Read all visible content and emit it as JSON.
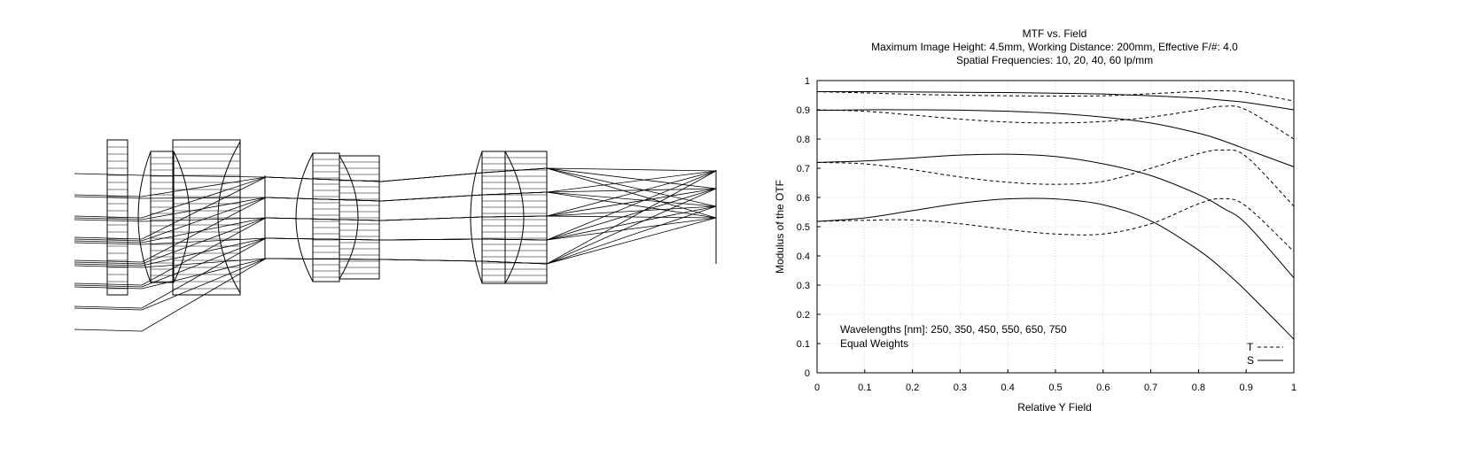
{
  "lens_layout": {
    "ray_color": "#000000",
    "element_color": "#000000",
    "background": "#ffffff"
  },
  "chart_data": {
    "type": "line",
    "title": "MTF vs. Field",
    "subtitle_1": "Maximum Image Height: 4.5mm, Working Distance: 200mm, Effective F/#: 4.0",
    "subtitle_2": "Spatial Frequencies: 10, 20, 40, 60 lp/mm",
    "xlabel": "Relative Y Field",
    "ylabel": "Modulus of the OTF",
    "xlim": [
      0,
      1
    ],
    "ylim": [
      0,
      1
    ],
    "x_ticks": [
      "0",
      "0.1",
      "0.2",
      "0.3",
      "0.4",
      "0.5",
      "0.6",
      "0.7",
      "0.8",
      "0.9",
      "1"
    ],
    "y_ticks": [
      "0",
      "0.1",
      "0.2",
      "0.3",
      "0.4",
      "0.5",
      "0.6",
      "0.7",
      "0.8",
      "0.9",
      "1"
    ],
    "grid": true,
    "annotation_1": "Wavelengths [nm]: 250, 350, 450, 550, 650, 750",
    "annotation_2": "Equal Weights",
    "legend": {
      "position": "bottom-right",
      "entries": [
        {
          "label": "T",
          "style": "dashed"
        },
        {
          "label": "S",
          "style": "solid"
        }
      ]
    },
    "x": [
      0,
      0.1,
      0.2,
      0.3,
      0.4,
      0.5,
      0.6,
      0.7,
      0.8,
      0.85,
      0.9,
      1.0
    ],
    "series": [
      {
        "group": "T",
        "frequency": 10,
        "style": "dashed",
        "values": [
          0.962,
          0.958,
          0.953,
          0.95,
          0.948,
          0.947,
          0.948,
          0.955,
          0.963,
          0.965,
          0.96,
          0.93
        ]
      },
      {
        "group": "S",
        "frequency": 10,
        "style": "solid",
        "values": [
          0.962,
          0.962,
          0.961,
          0.96,
          0.959,
          0.957,
          0.954,
          0.948,
          0.94,
          0.933,
          0.925,
          0.9
        ]
      },
      {
        "group": "T",
        "frequency": 20,
        "style": "dashed",
        "values": [
          0.9,
          0.895,
          0.882,
          0.868,
          0.858,
          0.855,
          0.86,
          0.875,
          0.9,
          0.912,
          0.9,
          0.8
        ]
      },
      {
        "group": "S",
        "frequency": 20,
        "style": "solid",
        "values": [
          0.898,
          0.9,
          0.9,
          0.899,
          0.895,
          0.888,
          0.875,
          0.855,
          0.82,
          0.795,
          0.765,
          0.705
        ]
      },
      {
        "group": "T",
        "frequency": 40,
        "style": "dashed",
        "values": [
          0.72,
          0.715,
          0.695,
          0.67,
          0.652,
          0.645,
          0.655,
          0.7,
          0.75,
          0.762,
          0.74,
          0.57
        ]
      },
      {
        "group": "S",
        "frequency": 40,
        "style": "solid",
        "values": [
          0.72,
          0.725,
          0.735,
          0.745,
          0.748,
          0.74,
          0.715,
          0.675,
          0.61,
          0.565,
          0.51,
          0.325
        ]
      },
      {
        "group": "T",
        "frequency": 60,
        "style": "dashed",
        "values": [
          0.518,
          0.522,
          0.523,
          0.51,
          0.49,
          0.475,
          0.475,
          0.51,
          0.578,
          0.596,
          0.57,
          0.415
        ]
      },
      {
        "group": "S",
        "frequency": 60,
        "style": "solid",
        "values": [
          0.518,
          0.53,
          0.555,
          0.58,
          0.595,
          0.595,
          0.575,
          0.52,
          0.42,
          0.355,
          0.28,
          0.115
        ]
      }
    ]
  }
}
